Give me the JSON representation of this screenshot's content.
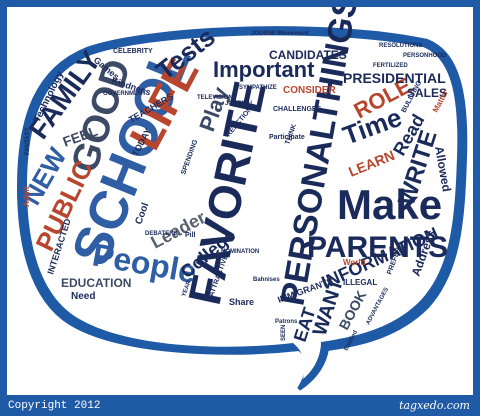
{
  "footer": {
    "copyright": "Copyright 2012",
    "brand": "tagxedo.com"
  },
  "colors": {
    "frame": "#1f5aa6",
    "bubble": "#1f5aa6",
    "navy": "#1a2a5a",
    "blue": "#2f5ea5",
    "gray": "#5a6270",
    "red": "#b8462f",
    "slate": "#3d4a66"
  },
  "words": {
    "school": "SCHOOL",
    "favorite": "FAVORITE",
    "personalthings": "PERSONALTHINGS",
    "life": "LIFE",
    "good": "GOOD",
    "make": "Make",
    "parents": "PARENTS",
    "people": "People",
    "family": "FAMILY",
    "public": "PUBLIC",
    "new": "NEW",
    "tests": "Tests",
    "important": "Important",
    "play": "Play",
    "write": "WRITE",
    "time": "Time",
    "role": "ROLE",
    "read": "Read",
    "learn": "LEARN",
    "information": "INFORMATION",
    "want": "WANT",
    "eat": "EAT",
    "book": "BOOK",
    "leader": "Leader",
    "college": "College",
    "education": "EDUCATION",
    "feel": "FEEL",
    "presidential": "PRESIDENTIAL",
    "candidates": "CANDIDATES",
    "consider": "CONSIDER",
    "sales": "SALES",
    "allowed": "Allowed",
    "address": "Address",
    "technology": "Technology",
    "games": "Games",
    "kindness": "Kindness",
    "teachers": "TEACHERS",
    "today": "TODAY",
    "cool": "Cool",
    "interacted": "INTERACTED",
    "need": "Need",
    "adult": "Adult",
    "world": "World",
    "illegal": "ILLEGAL",
    "immigrants": "IMMIGRANTS",
    "share": "Share",
    "attractive": "ATTRACTIVE",
    "challenges": "CHALLENGES",
    "participate": "Participate",
    "spending": "SPENDING",
    "think": "THINK",
    "reaction": "REACTION",
    "celebrity": "CELEBRITY",
    "bullying": "BULLYING",
    "matter": "Matter",
    "journey": "JOURNEY",
    "movement": "Movement",
    "fertilized": "FERTILIZED",
    "personhood": "PERSONHOOD",
    "resolutions": "RESOLUTIONS",
    "sympathize": "SYMPATHIZE",
    "journal": "JOURNAL",
    "government": "GOVERNMENT",
    "fantasy": "FANTASY",
    "debaters": "DEBATERS",
    "year": "YEAR",
    "pill": "Pill",
    "seen": "SEEN",
    "advantages": "ADVANTAGES",
    "prefer": "PREFER",
    "busses": "Bahnises",
    "television": "TELEVISION",
    "nomination": "NOMINATION",
    "patrons": "Patrons",
    "entitled": "Entitled"
  }
}
